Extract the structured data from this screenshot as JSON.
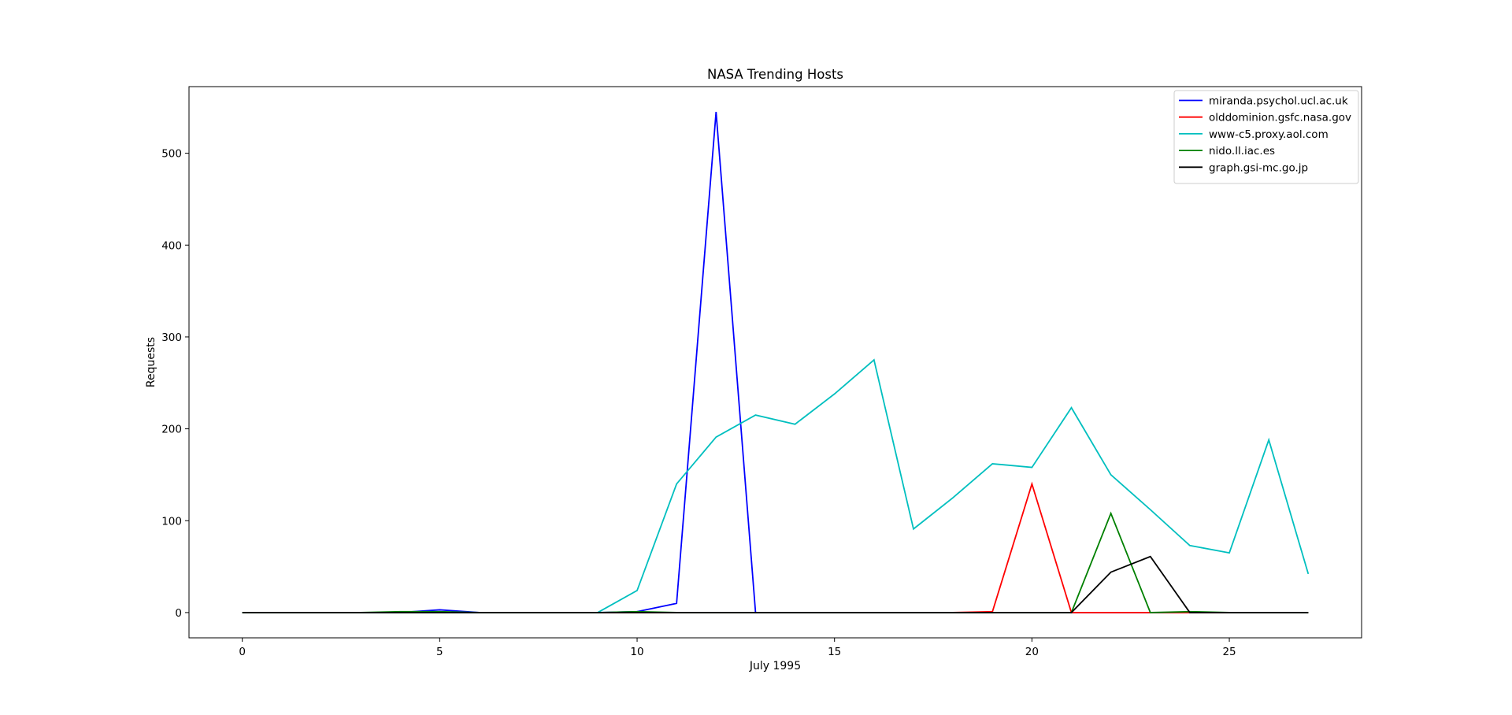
{
  "chart_data": {
    "type": "line",
    "title": "NASA Trending Hosts",
    "xlabel": "July 1995",
    "ylabel": "Requests",
    "xlim": [
      -1.35,
      28.35
    ],
    "ylim": [
      -27.5,
      572.5
    ],
    "xticks": [
      0,
      5,
      10,
      15,
      20,
      25
    ],
    "yticks": [
      0,
      100,
      200,
      300,
      400,
      500
    ],
    "grid": false,
    "legend_position": "top-right",
    "x": [
      0,
      1,
      2,
      3,
      4,
      5,
      6,
      7,
      8,
      9,
      10,
      11,
      12,
      13,
      14,
      15,
      16,
      17,
      18,
      19,
      20,
      21,
      22,
      23,
      24,
      25,
      26,
      27
    ],
    "series": [
      {
        "name": "miranda.psychol.ucl.ac.uk",
        "color": "#0000ff",
        "values": [
          0,
          0,
          0,
          0,
          0,
          3,
          0,
          0,
          0,
          0,
          1,
          10,
          545,
          0,
          0,
          0,
          0,
          0,
          0,
          0,
          0,
          0,
          0,
          0,
          0,
          0,
          0,
          0
        ]
      },
      {
        "name": "olddominion.gsfc.nasa.gov",
        "color": "#ff0000",
        "values": [
          0,
          0,
          0,
          0,
          0,
          0,
          0,
          0,
          0,
          0,
          0,
          0,
          0,
          0,
          0,
          0,
          0,
          0,
          0,
          1,
          140,
          0,
          0,
          0,
          0,
          0,
          0,
          0
        ]
      },
      {
        "name": "www-c5.proxy.aol.com",
        "color": "#00bfbf",
        "values": [
          0,
          0,
          0,
          0,
          0,
          0,
          0,
          0,
          0,
          0,
          24,
          140,
          191,
          215,
          205,
          238,
          275,
          91,
          125,
          162,
          158,
          223,
          150,
          112,
          73,
          65,
          188,
          42
        ]
      },
      {
        "name": "nido.ll.iac.es",
        "color": "#008000",
        "values": [
          0,
          0,
          0,
          0,
          1,
          1,
          0,
          0,
          0,
          0,
          1,
          0,
          0,
          0,
          0,
          0,
          0,
          0,
          0,
          0,
          0,
          0,
          108,
          0,
          1,
          0,
          0,
          0
        ]
      },
      {
        "name": "graph.gsi-mc.go.jp",
        "color": "#000000",
        "values": [
          0,
          0,
          0,
          0,
          0,
          0,
          0,
          0,
          0,
          0,
          0,
          0,
          0,
          0,
          0,
          0,
          0,
          0,
          0,
          0,
          0,
          0,
          44,
          61,
          0,
          0,
          0,
          0
        ]
      }
    ]
  }
}
